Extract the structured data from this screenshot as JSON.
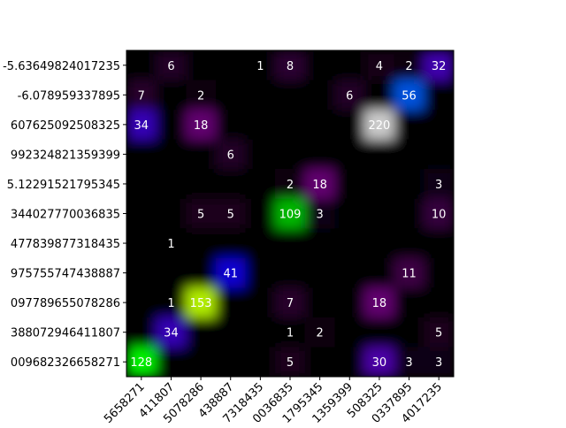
{
  "chart_data": {
    "type": "heatmap",
    "x_labels": [
      "5658271",
      "411807",
      "5078286",
      "438887",
      "7318435",
      "0036835",
      "1795345",
      "1359399",
      "508325",
      "0337895",
      "4017235"
    ],
    "y_labels": [
      "-5.63649824017235",
      "-6.078959337895",
      "607625092508325",
      "992324821359399",
      "5.12291521795345",
      "344027770036835",
      "477839877318435",
      "975755747438887",
      "097789655078286",
      "388072946411807",
      "009682326658271"
    ],
    "values": [
      [
        0,
        6,
        0,
        0,
        1,
        8,
        0,
        0,
        4,
        2,
        32
      ],
      [
        7,
        0,
        2,
        0,
        0,
        0,
        0,
        6,
        0,
        56,
        0
      ],
      [
        34,
        0,
        18,
        0,
        0,
        0,
        0,
        0,
        220,
        0,
        0
      ],
      [
        0,
        0,
        0,
        6,
        0,
        0,
        0,
        0,
        0,
        0,
        0
      ],
      [
        0,
        0,
        0,
        0,
        0,
        2,
        18,
        0,
        0,
        0,
        3
      ],
      [
        0,
        0,
        5,
        5,
        0,
        109,
        3,
        0,
        0,
        0,
        10
      ],
      [
        0,
        1,
        0,
        0,
        0,
        0,
        0,
        0,
        0,
        0,
        0
      ],
      [
        0,
        0,
        0,
        41,
        0,
        0,
        0,
        0,
        0,
        11,
        0
      ],
      [
        0,
        1,
        153,
        0,
        0,
        7,
        0,
        0,
        18,
        0,
        0
      ],
      [
        0,
        34,
        0,
        0,
        0,
        1,
        2,
        0,
        0,
        0,
        5
      ],
      [
        128,
        0,
        0,
        0,
        0,
        5,
        0,
        0,
        30,
        3,
        3
      ]
    ],
    "colormap": "nipy_spectral",
    "vlim": [
      0,
      220
    ]
  }
}
